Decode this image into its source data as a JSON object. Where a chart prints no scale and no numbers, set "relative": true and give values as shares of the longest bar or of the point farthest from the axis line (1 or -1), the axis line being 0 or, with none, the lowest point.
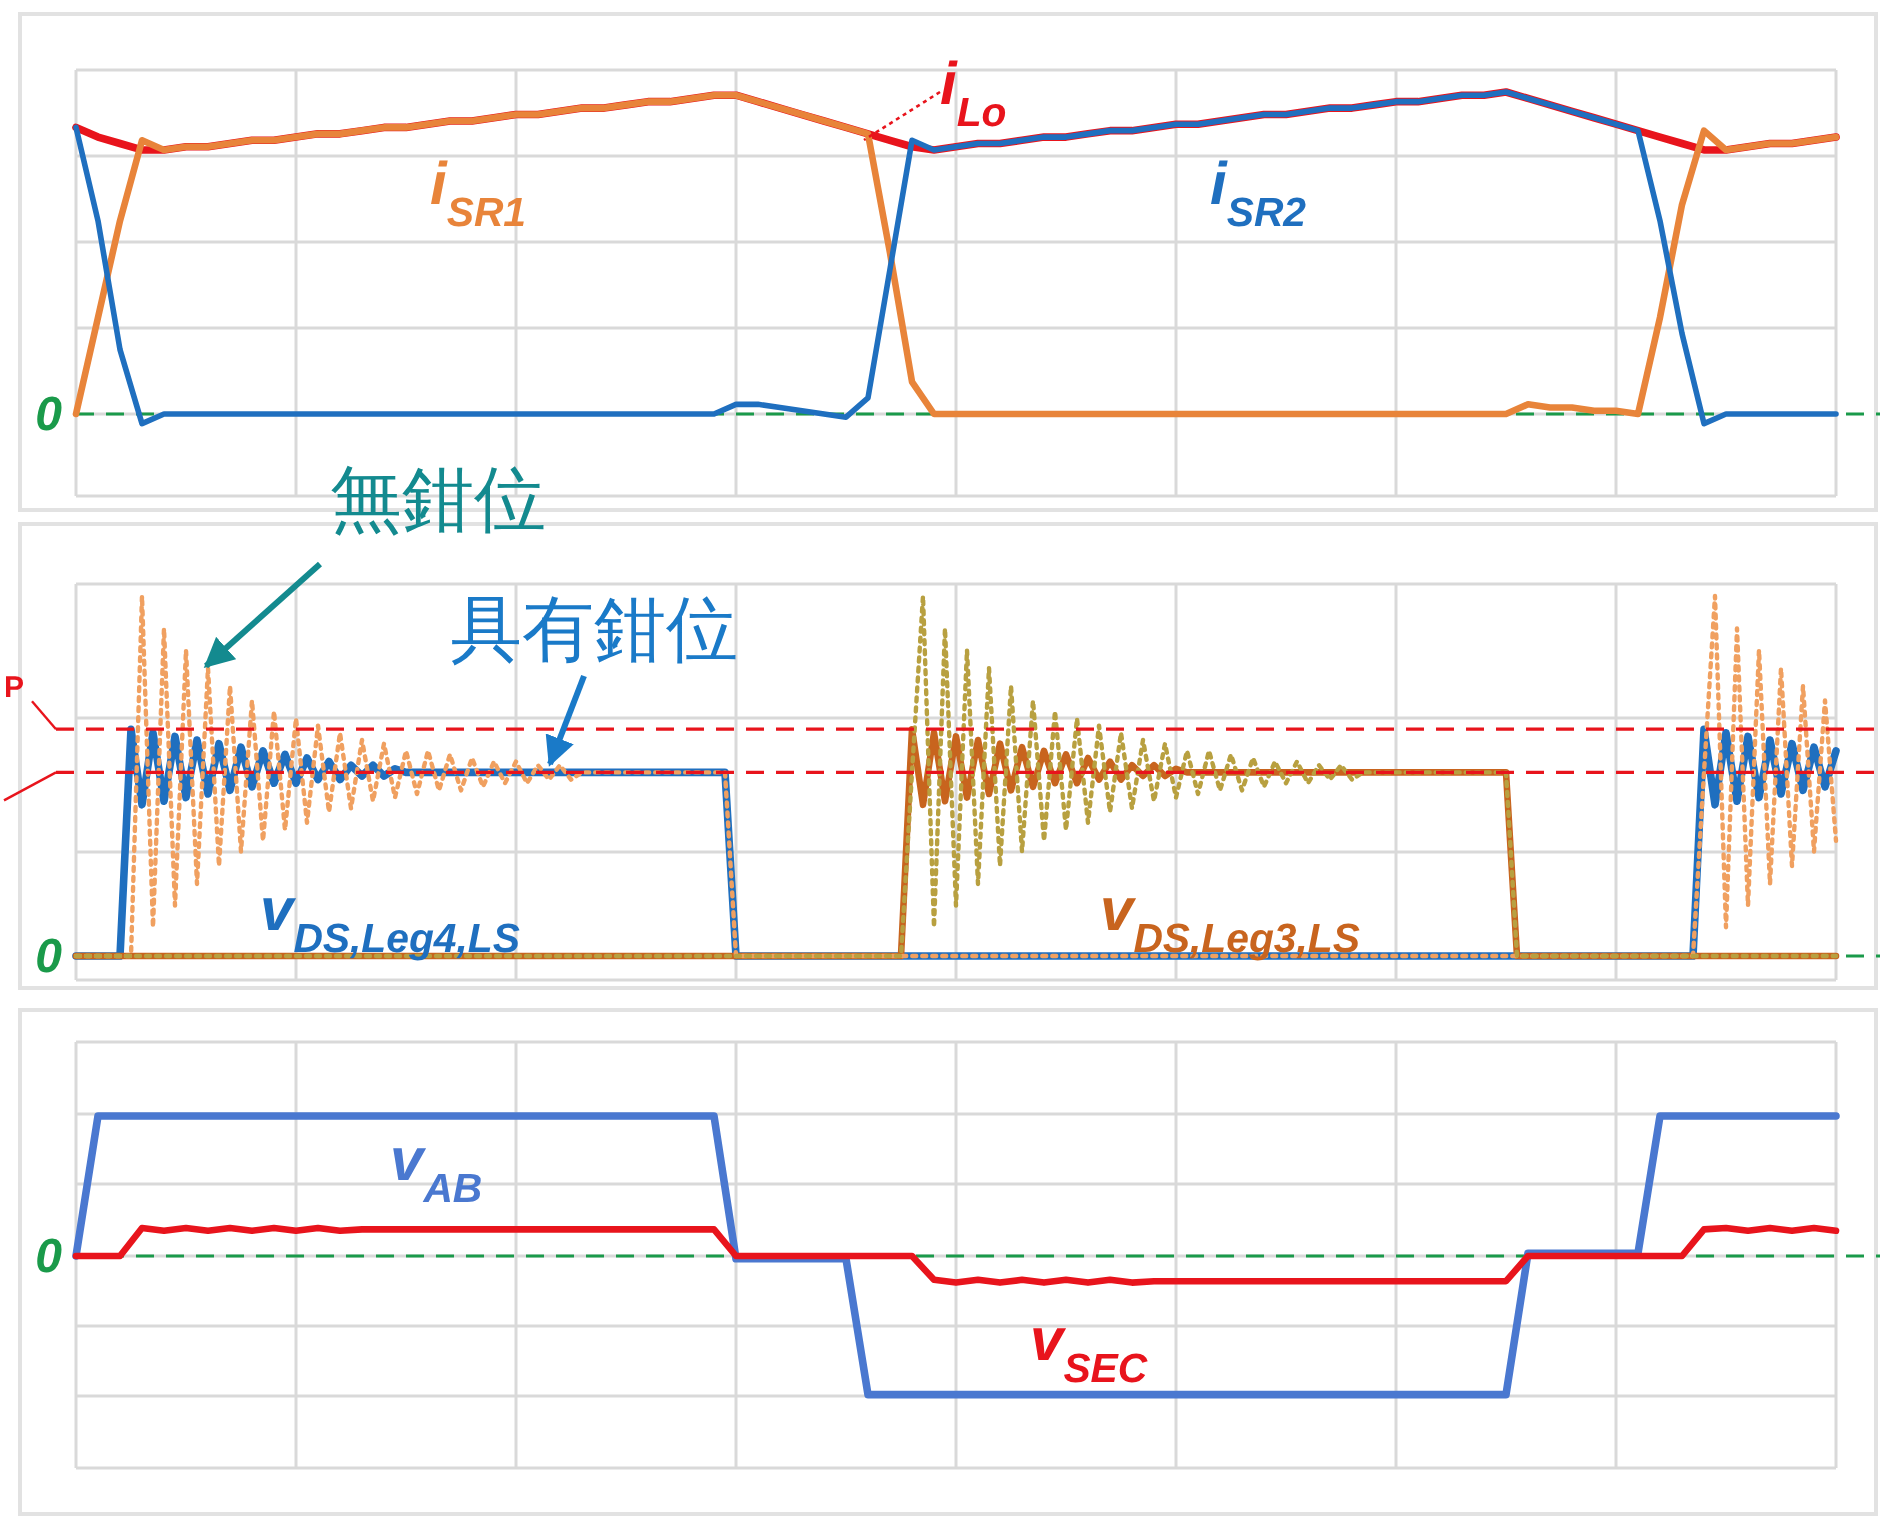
{
  "chart_data": [
    {
      "type": "line",
      "relative": true,
      "grid": true,
      "categories": [
        null,
        null,
        null,
        null,
        null,
        null,
        null,
        null,
        null,
        null,
        null,
        null,
        null,
        null,
        null,
        null,
        null,
        null,
        null,
        null,
        null,
        null,
        null,
        null,
        null,
        null,
        null,
        null,
        null,
        null,
        null,
        null,
        null,
        null,
        null,
        null,
        null,
        null,
        null,
        null,
        null,
        null,
        null,
        null,
        null,
        null,
        null,
        null,
        null,
        null,
        null,
        null,
        null,
        null,
        null,
        null,
        null,
        null,
        null,
        null,
        null,
        null,
        null,
        null,
        null,
        null,
        null,
        null,
        null,
        null,
        null,
        null,
        null,
        null,
        null,
        null,
        null,
        null,
        null,
        null,
        null
      ],
      "series": [
        {
          "name": "i$_{Lo}$",
          "color": "#e8141c",
          "values": [
            0.89,
            0.86,
            0.84,
            0.82,
            0.82,
            0.83,
            0.83,
            0.84,
            0.85,
            0.85,
            0.86,
            0.87,
            0.87,
            0.88,
            0.89,
            0.89,
            0.9,
            0.91,
            0.91,
            0.92,
            0.93,
            0.93,
            0.94,
            0.95,
            0.95,
            0.96,
            0.97,
            0.97,
            0.98,
            0.99,
            0.99,
            0.97,
            0.95,
            0.93,
            0.91,
            0.89,
            0.87,
            0.85,
            0.83,
            0.82,
            0.83,
            0.84,
            0.84,
            0.85,
            0.86,
            0.86,
            0.87,
            0.88,
            0.88,
            0.89,
            0.9,
            0.9,
            0.91,
            0.92,
            0.93,
            0.93,
            0.94,
            0.95,
            0.95,
            0.96,
            0.97,
            0.97,
            0.98,
            0.99,
            0.99,
            1,
            0.98,
            0.96,
            0.94,
            0.92,
            0.9,
            0.88,
            0.86,
            0.84,
            0.82,
            0.82,
            0.83,
            0.84,
            0.84,
            0.85,
            0.86
          ]
        },
        {
          "name": "i$_{SR1}$",
          "color": "#e8843a",
          "values": [
            0,
            0.3,
            0.6,
            0.85,
            0.82,
            0.83,
            0.83,
            0.84,
            0.85,
            0.85,
            0.86,
            0.87,
            0.87,
            0.88,
            0.89,
            0.89,
            0.9,
            0.91,
            0.91,
            0.92,
            0.93,
            0.93,
            0.94,
            0.95,
            0.95,
            0.96,
            0.97,
            0.97,
            0.98,
            0.99,
            0.99,
            0.97,
            0.95,
            0.93,
            0.91,
            0.89,
            0.87,
            0.5,
            0.1,
            0,
            0,
            0,
            0,
            0,
            0,
            0,
            0,
            0,
            0,
            0,
            0,
            0,
            0,
            0,
            0,
            0,
            0,
            0,
            0,
            0,
            0,
            0,
            0,
            0,
            0,
            0,
            0.03,
            0.02,
            0.02,
            0.01,
            0.01,
            0,
            0.3,
            0.65,
            0.88,
            0.82,
            0.83,
            0.84,
            0.84,
            0.85,
            0.86
          ]
        },
        {
          "name": "i$_{SR2}$",
          "color": "#1f6fbf",
          "values": [
            0.89,
            0.6,
            0.2,
            -0.03,
            0,
            0,
            0,
            0,
            0,
            0,
            0,
            0,
            0,
            0,
            0,
            0,
            0,
            0,
            0,
            0,
            0,
            0,
            0,
            0,
            0,
            0,
            0,
            0,
            0,
            0,
            0.03,
            0.03,
            0.02,
            0.01,
            0,
            -0.01,
            0.05,
            0.45,
            0.85,
            0.82,
            0.83,
            0.84,
            0.84,
            0.85,
            0.86,
            0.86,
            0.87,
            0.88,
            0.88,
            0.89,
            0.9,
            0.9,
            0.91,
            0.92,
            0.93,
            0.93,
            0.94,
            0.95,
            0.95,
            0.96,
            0.97,
            0.97,
            0.98,
            0.99,
            0.99,
            1,
            0.98,
            0.96,
            0.94,
            0.92,
            0.9,
            0.88,
            0.6,
            0.25,
            -0.03,
            0,
            0,
            0,
            0,
            0,
            0
          ]
        }
      ],
      "ref_lines": [
        {
          "axis": "y",
          "value": 0,
          "label": "0",
          "color": "#1a9a4a",
          "line_style": "dashed"
        }
      ]
    },
    {
      "type": "line",
      "relative": true,
      "grid": true,
      "categories": [
        null,
        null,
        null,
        null,
        null,
        null,
        null,
        null,
        null,
        null,
        null,
        null,
        null,
        null,
        null,
        null,
        null,
        null,
        null,
        null,
        null,
        null,
        null,
        null,
        null,
        null,
        null,
        null,
        null,
        null,
        null,
        null,
        null,
        null,
        null,
        null,
        null,
        null,
        null,
        null,
        null,
        null,
        null,
        null,
        null,
        null,
        null,
        null,
        null,
        null,
        null,
        null,
        null,
        null,
        null,
        null,
        null,
        null,
        null,
        null,
        null,
        null,
        null,
        null,
        null,
        null,
        null,
        null,
        null,
        null,
        null,
        null,
        null,
        null,
        null,
        null,
        null,
        null,
        null,
        null,
        null,
        null,
        null,
        null,
        null,
        null,
        null,
        null,
        null,
        null,
        null,
        null,
        null,
        null,
        null,
        null,
        null,
        null,
        null,
        null,
        null,
        null,
        null,
        null,
        null,
        null,
        null,
        null,
        null,
        null,
        null,
        null,
        null,
        null,
        null,
        null,
        null,
        null,
        null,
        null,
        null,
        null,
        null,
        null,
        null,
        null,
        null,
        null,
        null,
        null,
        null,
        null,
        null,
        null,
        null,
        null,
        null,
        null,
        null,
        null,
        null,
        null,
        null,
        null,
        null,
        null,
        null,
        null,
        null,
        null,
        null,
        null,
        null,
        null,
        null,
        null,
        null,
        null,
        null,
        null,
        null
      ],
      "series": [
        {
          "color": "#f0a060",
          "line_style": "dotted",
          "values": [
            0,
            0,
            0,
            0,
            0,
            0,
            1,
            0.08,
            0.91,
            0.14,
            0.85,
            0.2,
            0.8,
            0.25,
            0.75,
            0.29,
            0.71,
            0.32,
            0.68,
            0.35,
            0.66,
            0.37,
            0.64,
            0.4,
            0.62,
            0.41,
            0.6,
            0.43,
            0.59,
            0.44,
            0.57,
            0.45,
            0.57,
            0.46,
            0.56,
            0.46,
            0.55,
            0.47,
            0.54,
            0.48,
            0.54,
            0.48,
            0.53,
            0.49,
            0.53,
            0.49,
            0.51,
            0.51,
            0.51,
            0.51,
            0.51,
            0.51,
            0.51,
            0.51,
            0.51,
            0.51,
            0.51,
            0.51,
            0.51,
            0.51,
            0,
            0,
            0,
            0,
            0,
            0,
            0,
            0,
            0,
            0,
            0,
            0,
            0,
            0,
            0,
            0,
            0,
            0,
            0,
            0,
            0,
            0,
            0,
            0,
            0,
            0,
            0,
            0,
            0,
            0,
            0,
            0,
            0,
            0,
            0,
            0,
            0,
            0,
            0,
            0,
            0,
            0,
            0,
            0,
            0,
            0,
            0,
            0,
            0,
            0,
            0,
            0,
            0,
            0,
            0,
            0,
            0,
            0,
            0,
            0,
            0,
            0,
            0,
            0,
            0,
            0,
            0,
            0,
            0,
            0,
            0,
            0,
            0,
            0,
            0,
            0,
            0,
            0,
            0,
            0,
            0,
            0,
            0,
            0,
            0,
            0,
            0,
            0,
            0.51,
            1,
            0.08,
            0.91,
            0.14,
            0.85,
            0.2,
            0.8,
            0.25,
            0.75,
            0.29,
            0.71,
            0.32
          ]
        },
        {
          "color": "#b8a040",
          "line_style": "dotted",
          "values": [
            0,
            0,
            0,
            0,
            0,
            0,
            0,
            0,
            0,
            0,
            0,
            0,
            0,
            0,
            0,
            0,
            0,
            0,
            0,
            0,
            0,
            0,
            0,
            0,
            0,
            0,
            0,
            0,
            0,
            0,
            0,
            0,
            0,
            0,
            0,
            0,
            0,
            0,
            0,
            0,
            0,
            0,
            0,
            0,
            0,
            0,
            0,
            0,
            0,
            0,
            0,
            0,
            0,
            0,
            0,
            0,
            0,
            0,
            0,
            0,
            0,
            0,
            0,
            0,
            0,
            0,
            0,
            0,
            0,
            0,
            0,
            0,
            0,
            0,
            0,
            0,
            0.51,
            1,
            0.08,
            0.91,
            0.14,
            0.85,
            0.2,
            0.8,
            0.25,
            0.75,
            0.29,
            0.71,
            0.32,
            0.68,
            0.35,
            0.66,
            0.37,
            0.64,
            0.4,
            0.62,
            0.41,
            0.6,
            0.43,
            0.59,
            0.44,
            0.57,
            0.45,
            0.57,
            0.46,
            0.56,
            0.46,
            0.55,
            0.47,
            0.54,
            0.48,
            0.54,
            0.48,
            0.53,
            0.49,
            0.53,
            0.49,
            0.51,
            0.51,
            0.51,
            0.51,
            0.51,
            0.51,
            0.51,
            0.51,
            0.51,
            0.51,
            0.51,
            0.51,
            0.51,
            0.51,
            0,
            0,
            0,
            0,
            0,
            0,
            0,
            0,
            0,
            0,
            0,
            0,
            0,
            0,
            0,
            0,
            0,
            0,
            0,
            0,
            0,
            0,
            0,
            0,
            0,
            0,
            0,
            0,
            0,
            0
          ]
        },
        {
          "name": "v$_{DS,Leg4,LS}$",
          "color": "#1f6fbf",
          "values": [
            0,
            0,
            0,
            0,
            0,
            0.63,
            0.42,
            0.62,
            0.43,
            0.61,
            0.44,
            0.6,
            0.45,
            0.59,
            0.46,
            0.58,
            0.47,
            0.57,
            0.48,
            0.56,
            0.48,
            0.55,
            0.49,
            0.54,
            0.49,
            0.53,
            0.5,
            0.53,
            0.5,
            0.52,
            0.51,
            0.51,
            0.51,
            0.51,
            0.51,
            0.51,
            0.51,
            0.51,
            0.51,
            0.51,
            0.51,
            0.51,
            0.51,
            0.51,
            0.51,
            0.51,
            0.51,
            0.51,
            0.51,
            0.51,
            0.51,
            0.51,
            0.51,
            0.51,
            0.51,
            0.51,
            0.51,
            0.51,
            0.51,
            0.51,
            0,
            0,
            0,
            0,
            0,
            0,
            0,
            0,
            0,
            0,
            0,
            0,
            0,
            0,
            0,
            0,
            0,
            0,
            0,
            0,
            0,
            0,
            0,
            0,
            0,
            0,
            0,
            0,
            0,
            0,
            0,
            0,
            0,
            0,
            0,
            0,
            0,
            0,
            0,
            0,
            0,
            0,
            0,
            0,
            0,
            0,
            0,
            0,
            0,
            0,
            0,
            0,
            0,
            0,
            0,
            0,
            0,
            0,
            0,
            0,
            0,
            0,
            0,
            0,
            0,
            0,
            0,
            0,
            0,
            0,
            0,
            0,
            0,
            0,
            0,
            0,
            0,
            0,
            0,
            0,
            0,
            0,
            0,
            0,
            0,
            0,
            0,
            0,
            0.63,
            0.42,
            0.62,
            0.43,
            0.61,
            0.44,
            0.6,
            0.45,
            0.59,
            0.46,
            0.58,
            0.47,
            0.57
          ]
        },
        {
          "name": "v$_{DS,Leg3,LS}$",
          "color": "#c8641e",
          "values": [
            0,
            0,
            0,
            0,
            0,
            0,
            0,
            0,
            0,
            0,
            0,
            0,
            0,
            0,
            0,
            0,
            0,
            0,
            0,
            0,
            0,
            0,
            0,
            0,
            0,
            0,
            0,
            0,
            0,
            0,
            0,
            0,
            0,
            0,
            0,
            0,
            0,
            0,
            0,
            0,
            0,
            0,
            0,
            0,
            0,
            0,
            0,
            0,
            0,
            0,
            0,
            0,
            0,
            0,
            0,
            0,
            0,
            0,
            0,
            0,
            0,
            0,
            0,
            0,
            0,
            0,
            0,
            0,
            0,
            0,
            0,
            0,
            0,
            0,
            0,
            0,
            0.63,
            0.42,
            0.62,
            0.43,
            0.61,
            0.44,
            0.6,
            0.45,
            0.59,
            0.46,
            0.58,
            0.47,
            0.57,
            0.48,
            0.56,
            0.48,
            0.55,
            0.49,
            0.54,
            0.49,
            0.53,
            0.5,
            0.53,
            0.5,
            0.52,
            0.51,
            0.51,
            0.51,
            0.51,
            0.51,
            0.51,
            0.51,
            0.51,
            0.51,
            0.51,
            0.51,
            0.51,
            0.51,
            0.51,
            0.51,
            0.51,
            0.51,
            0.51,
            0.51,
            0.51,
            0.51,
            0.51,
            0.51,
            0.51,
            0.51,
            0.51,
            0.51,
            0.51,
            0.51,
            0.51,
            0,
            0,
            0,
            0,
            0,
            0,
            0,
            0,
            0,
            0,
            0,
            0,
            0,
            0,
            0,
            0,
            0,
            0,
            0,
            0,
            0,
            0,
            0,
            0,
            0,
            0,
            0,
            0,
            0,
            0
          ]
        }
      ],
      "ref_lines": [
        {
          "axis": "y",
          "value": 0,
          "label": "0",
          "color": "#1a9a4a",
          "line_style": "dashed"
        },
        {
          "axis": "y",
          "value": 0.63,
          "label": "P",
          "color": "#e8141c",
          "line_style": "dashed"
        },
        {
          "axis": "y",
          "value": 0.51,
          "label": null,
          "color": "#e8141c",
          "line_style": "dashed"
        }
      ],
      "annotations": [
        "無鉗位",
        "具有鉗位"
      ]
    },
    {
      "type": "line",
      "relative": true,
      "grid": true,
      "categories": [
        null,
        null,
        null,
        null,
        null,
        null,
        null,
        null,
        null,
        null,
        null,
        null,
        null,
        null,
        null,
        null,
        null,
        null,
        null,
        null,
        null,
        null,
        null,
        null,
        null,
        null,
        null,
        null,
        null,
        null,
        null,
        null,
        null,
        null,
        null,
        null,
        null,
        null,
        null,
        null,
        null,
        null,
        null,
        null,
        null,
        null,
        null,
        null,
        null,
        null,
        null,
        null,
        null,
        null,
        null,
        null,
        null,
        null,
        null,
        null,
        null,
        null,
        null,
        null,
        null,
        null,
        null,
        null,
        null,
        null,
        null,
        null,
        null,
        null,
        null,
        null,
        null,
        null,
        null,
        null,
        null
      ],
      "series": [
        {
          "name": "v$_{AB}$",
          "color": "#4a78d0",
          "values": [
            0,
            1,
            1,
            1,
            1,
            1,
            1,
            1,
            1,
            1,
            1,
            1,
            1,
            1,
            1,
            1,
            1,
            1,
            1,
            1,
            1,
            1,
            1,
            1,
            1,
            1,
            1,
            1,
            1,
            1,
            -0.02,
            -0.02,
            -0.02,
            -0.02,
            -0.02,
            -0.02,
            -0.99,
            -0.99,
            -0.99,
            -0.99,
            -0.99,
            -0.99,
            -0.99,
            -0.99,
            -0.99,
            -0.99,
            -0.99,
            -0.99,
            -0.99,
            -0.99,
            -0.99,
            -0.99,
            -0.99,
            -0.99,
            -0.99,
            -0.99,
            -0.99,
            -0.99,
            -0.99,
            -0.99,
            -0.99,
            -0.99,
            -0.99,
            -0.99,
            -0.99,
            -0.99,
            0.02,
            0.02,
            0.02,
            0.02,
            0.02,
            0.02,
            1,
            1,
            1,
            1,
            1,
            1,
            1,
            1,
            1
          ]
        },
        {
          "name": "v$_{SEC}$",
          "color": "#e8141c",
          "values": [
            0,
            0,
            0,
            0.2,
            0.18,
            0.2,
            0.18,
            0.2,
            0.18,
            0.2,
            0.18,
            0.2,
            0.18,
            0.19,
            0.19,
            0.19,
            0.19,
            0.19,
            0.19,
            0.19,
            0.19,
            0.19,
            0.19,
            0.19,
            0.19,
            0.19,
            0.19,
            0.19,
            0.19,
            0.19,
            0,
            0,
            0,
            0,
            0,
            0,
            0,
            0,
            0,
            -0.17,
            -0.19,
            -0.17,
            -0.19,
            -0.17,
            -0.19,
            -0.17,
            -0.19,
            -0.17,
            -0.19,
            -0.18,
            -0.18,
            -0.18,
            -0.18,
            -0.18,
            -0.18,
            -0.18,
            -0.18,
            -0.18,
            -0.18,
            -0.18,
            -0.18,
            -0.18,
            -0.18,
            -0.18,
            -0.18,
            -0.18,
            0,
            0,
            0,
            0,
            0,
            0,
            0,
            0,
            0.19,
            0.2,
            0.18,
            0.2,
            0.18,
            0.2,
            0.18
          ]
        }
      ],
      "ref_lines": [
        {
          "axis": "y",
          "value": 0,
          "label": "0",
          "color": "#1a9a4a",
          "line_style": "dashed"
        }
      ]
    }
  ]
}
